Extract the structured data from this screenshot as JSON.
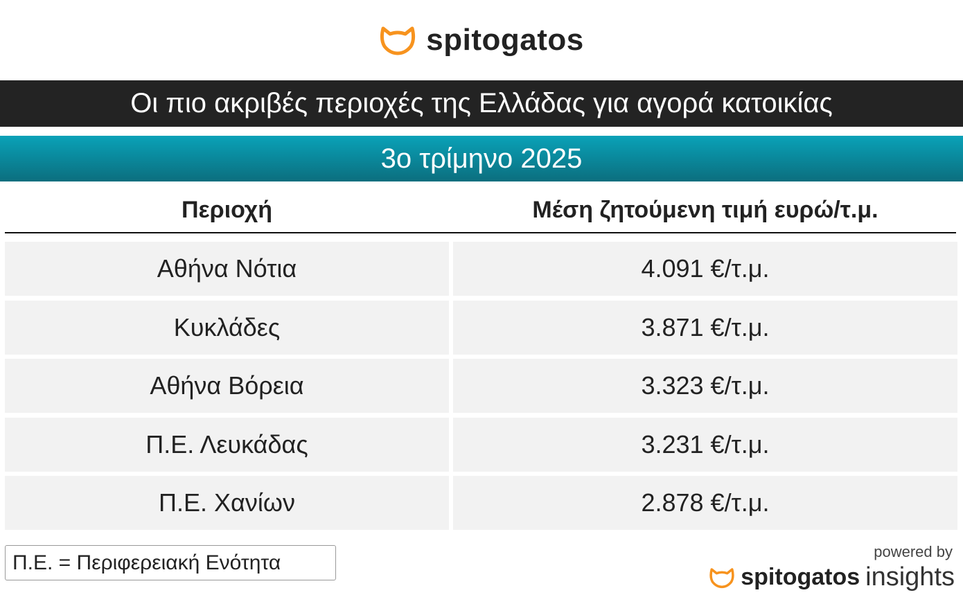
{
  "header": {
    "logo": "spitogatos",
    "title": "Οι πιο ακριβές περιοχές της Ελλάδας για αγορά κατοικίας",
    "subtitle": "3ο τρίμηνο 2025"
  },
  "table": {
    "headers": [
      "Περιοχή",
      "Μέση ζητούμενη τιμή ευρώ/τ.μ."
    ],
    "rows": [
      [
        "Αθήνα Νότια",
        "4.091 €/τ.μ."
      ],
      [
        "Κυκλάδες",
        "3.871 €/τ.μ."
      ],
      [
        "Αθήνα Βόρεια",
        "3.323 €/τ.μ."
      ],
      [
        "Π.Ε. Λευκάδας",
        "3.231 €/τ.μ."
      ],
      [
        "Π.Ε. Χανίων",
        "2.878 €/τ.μ."
      ]
    ]
  },
  "footnote": "Π.Ε. = Περιφερειακή Ενότητα",
  "footer": {
    "powered_by": "powered by",
    "brand": "spitogatos",
    "product": "insights"
  }
}
